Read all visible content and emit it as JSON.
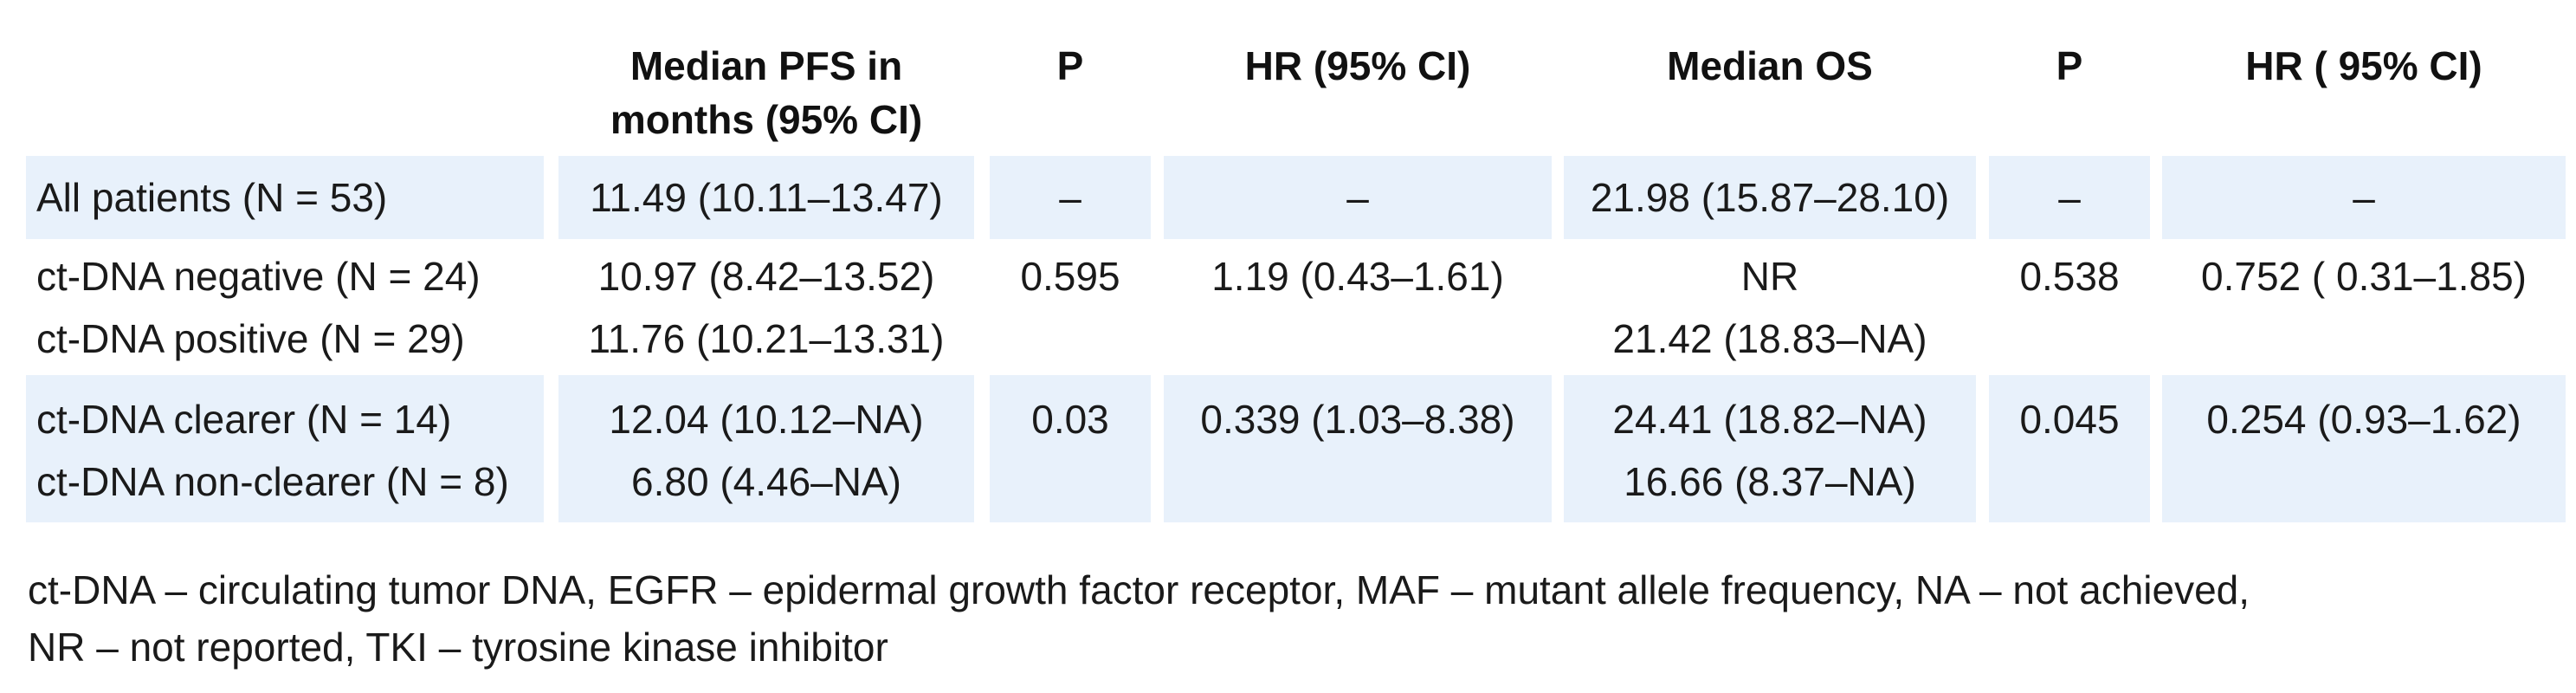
{
  "table": {
    "headers": {
      "col0": "",
      "col1": [
        "Median PFS in",
        "months (95% CI)"
      ],
      "col2": "P",
      "col3": "HR (95% CI)",
      "col4": "Median OS",
      "col5": "P",
      "col6": "HR ( 95% CI)"
    },
    "rows": [
      {
        "label": "All patients (N = 53)",
        "pfs": "11.49 (10.11–13.47)",
        "p1": "–",
        "hr1": "–",
        "os": "21.98 (15.87–28.10)",
        "p2": "–",
        "hr2": "–"
      },
      {
        "label": "ct-DNA negative (N = 24)",
        "pfs": "10.97 (8.42–13.52)",
        "p1": "0.595",
        "hr1": "1.19 (0.43–1.61)",
        "os": "NR",
        "p2": "0.538",
        "hr2": "0.752 ( 0.31–1.85)"
      },
      {
        "label": "ct-DNA positive (N = 29)",
        "pfs": "11.76 (10.21–13.31)",
        "p1": "",
        "hr1": "",
        "os": "21.42 (18.83–NA)",
        "p2": "",
        "hr2": ""
      },
      {
        "label": "ct-DNA clearer (N = 14)",
        "pfs": "12.04 (10.12–NA)",
        "p1": "0.03",
        "hr1": "0.339 (1.03–8.38)",
        "os": "24.41 (18.82–NA)",
        "p2": "0.045",
        "hr2": "0.254 (0.93–1.62)"
      },
      {
        "label": "ct-DNA non-clearer (N = 8)",
        "pfs": "6.80 (4.46–NA)",
        "p1": "",
        "hr1": "",
        "os": "16.66 (8.37–NA)",
        "p2": "",
        "hr2": ""
      }
    ]
  },
  "footnote": {
    "line1": "ct-DNA – circulating tumor DNA, EGFR – epidermal growth factor receptor, MAF – mutant allele frequency, NA – not achieved,",
    "line2": "NR – not reported, TKI – tyrosine kinase inhibitor"
  },
  "colors": {
    "band_fill": "#e8f1fb",
    "text": "#1a1a1a",
    "background": "#ffffff"
  }
}
